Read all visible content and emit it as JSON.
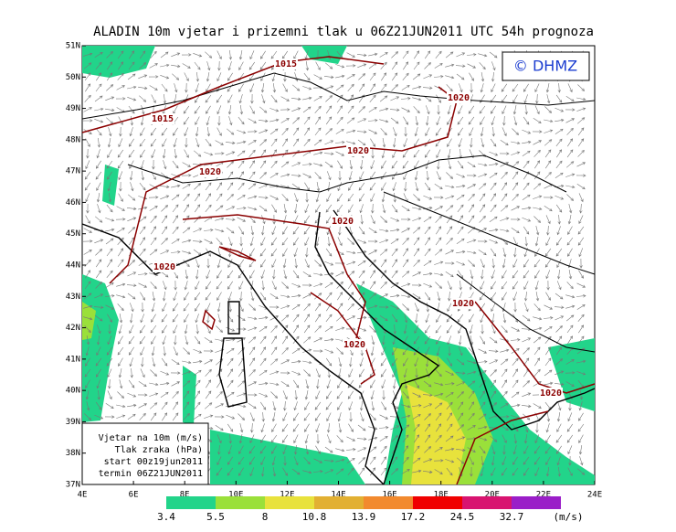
{
  "header": {
    "title": "ALADIN 10m vjetar i prizemni tlak u 06Z21JUN2011 UTC 54h prognoza",
    "logo": "© DHMZ"
  },
  "latitudes": [
    "51N",
    "50N",
    "49N",
    "48N",
    "47N",
    "46N",
    "45N",
    "44N",
    "43N",
    "42N",
    "41N",
    "40N",
    "39N",
    "38N",
    "37N"
  ],
  "longitudes": [
    "4E",
    "6E",
    "8E",
    "10E",
    "12E",
    "14E",
    "16E",
    "18E",
    "20E",
    "22E",
    "24E"
  ],
  "isobars": [
    "1015",
    "1015",
    "1020",
    "1020",
    "1020",
    "1020",
    "1020",
    "1020",
    "1020",
    "1020"
  ],
  "info_box": [
    "Vjetar na 10m (m/s)",
    "Tlak zraka (hPa)",
    "start 00z19jun2011",
    "termin 06Z21JUN2011"
  ],
  "color_bar": {
    "levels": [
      3.4,
      5.5,
      8,
      10.8,
      13.9,
      17.2,
      24.5,
      32.7
    ],
    "colors": [
      "#22d48a",
      "#9ae03a",
      "#e8e23c",
      "#e2b032",
      "#f28a2e",
      "#f00000",
      "#d81470",
      "#9a1ec8"
    ],
    "unit": "(m/s)"
  }
}
